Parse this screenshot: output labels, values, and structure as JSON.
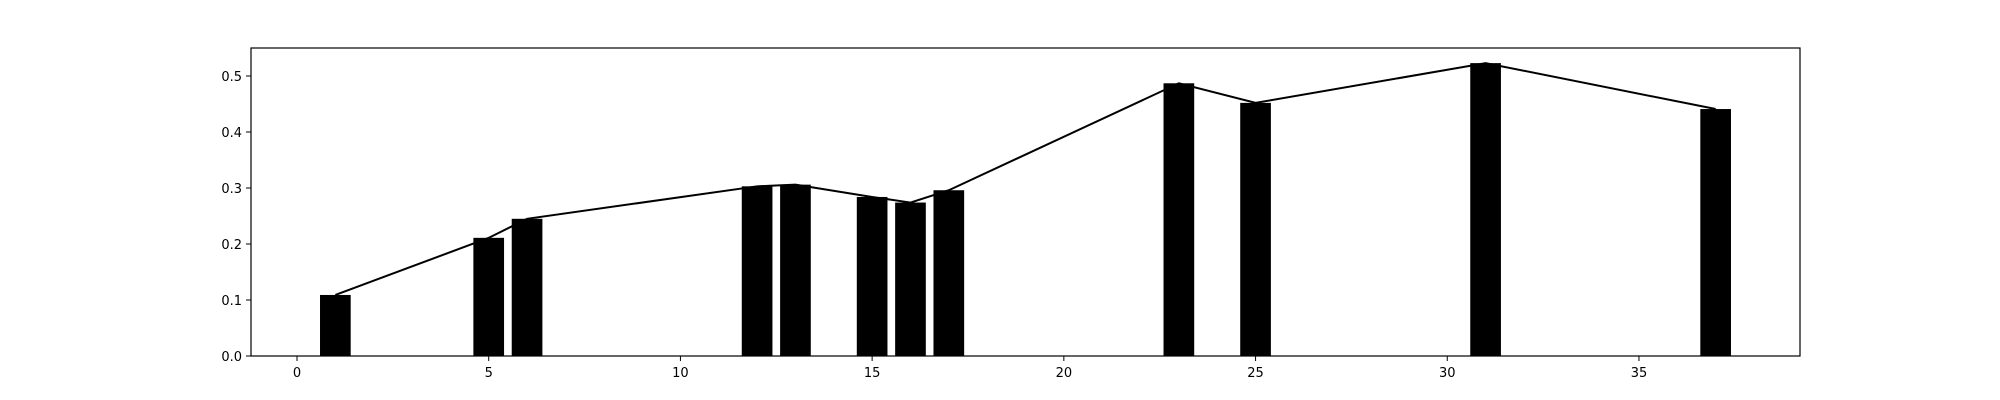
{
  "chart_data": {
    "type": "bar",
    "title": "",
    "xlabel": "",
    "ylabel": "",
    "xlim": [
      -1.2,
      39.2
    ],
    "ylim": [
      0,
      0.55
    ],
    "xticks": [
      0,
      5,
      10,
      15,
      20,
      25,
      30,
      35
    ],
    "yticks": [
      0.0,
      0.1,
      0.2,
      0.3,
      0.4,
      0.5
    ],
    "xtick_labels": [
      "0",
      "5",
      "10",
      "15",
      "20",
      "25",
      "30",
      "35"
    ],
    "ytick_labels": [
      "0.0",
      "0.1",
      "0.2",
      "0.3",
      "0.4",
      "0.5"
    ],
    "bar_width": 0.8,
    "grid": false,
    "colors": {
      "bar": "#000000",
      "line": "#000000",
      "axes": "#000000",
      "background": "#ffffff"
    },
    "x": [
      1,
      5,
      6,
      12,
      13,
      15,
      16,
      17,
      23,
      25,
      31,
      37
    ],
    "values": [
      0.109,
      0.211,
      0.245,
      0.303,
      0.306,
      0.284,
      0.274,
      0.296,
      0.487,
      0.452,
      0.523,
      0.441
    ],
    "overlay_line": {
      "type": "line",
      "x": [
        1,
        5,
        6,
        12,
        13,
        15,
        16,
        17,
        23,
        25,
        31,
        37
      ],
      "y": [
        0.109,
        0.211,
        0.245,
        0.303,
        0.306,
        0.284,
        0.274,
        0.296,
        0.487,
        0.452,
        0.523,
        0.441
      ]
    }
  }
}
